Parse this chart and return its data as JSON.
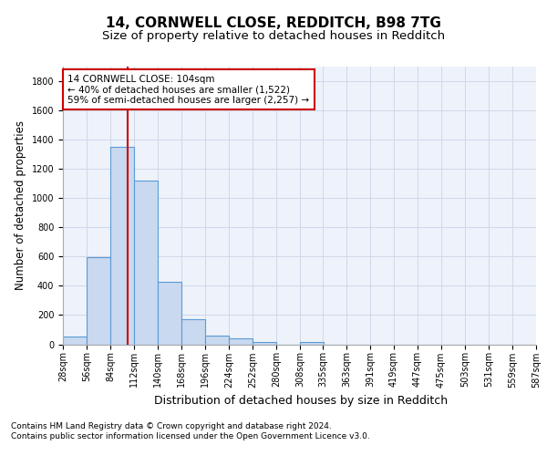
{
  "title1": "14, CORNWELL CLOSE, REDDITCH, B98 7TG",
  "title2": "Size of property relative to detached houses in Redditch",
  "xlabel": "Distribution of detached houses by size in Redditch",
  "ylabel": "Number of detached properties",
  "bar_values": [
    50,
    595,
    1350,
    1120,
    425,
    170,
    60,
    38,
    15,
    0,
    15,
    0,
    0,
    0,
    0,
    0,
    0,
    0,
    0,
    0
  ],
  "bin_edges": [
    28,
    56,
    84,
    112,
    140,
    168,
    196,
    224,
    252,
    280,
    308,
    335,
    363,
    391,
    419,
    447,
    475,
    503,
    531,
    559,
    587
  ],
  "bin_labels": [
    "28sqm",
    "56sqm",
    "84sqm",
    "112sqm",
    "140sqm",
    "168sqm",
    "196sqm",
    "224sqm",
    "252sqm",
    "280sqm",
    "308sqm",
    "335sqm",
    "363sqm",
    "391sqm",
    "419sqm",
    "447sqm",
    "475sqm",
    "503sqm",
    "531sqm",
    "559sqm",
    "587sqm"
  ],
  "bar_color": "#c9d9f0",
  "bar_edge_color": "#5b9bd5",
  "property_size": 104,
  "vline_color": "#cc0000",
  "annotation_line1": "14 CORNWELL CLOSE: 104sqm",
  "annotation_line2": "← 40% of detached houses are smaller (1,522)",
  "annotation_line3": "59% of semi-detached houses are larger (2,257) →",
  "annotation_box_color": "#cc0000",
  "grid_color": "#d0d8e8",
  "background_color": "#eef2fb",
  "ylim": [
    0,
    1900
  ],
  "yticks": [
    0,
    200,
    400,
    600,
    800,
    1000,
    1200,
    1400,
    1600,
    1800
  ],
  "footer_line1": "Contains HM Land Registry data © Crown copyright and database right 2024.",
  "footer_line2": "Contains public sector information licensed under the Open Government Licence v3.0.",
  "title1_fontsize": 11,
  "title2_fontsize": 9.5,
  "ylabel_fontsize": 8.5,
  "xlabel_fontsize": 9,
  "tick_fontsize": 7,
  "footer_fontsize": 6.5
}
